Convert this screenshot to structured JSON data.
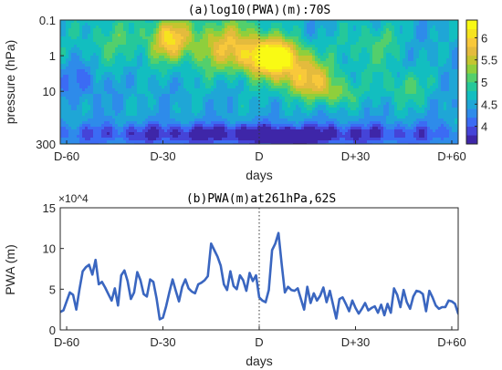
{
  "chart_data": [
    {
      "type": "heatmap",
      "title": "(a)log10(PWA)(m):70S",
      "xlabel": "days",
      "ylabel": "pressure (hPa)",
      "x_ticks": [
        "D-60",
        "D-30",
        "D",
        "D+30",
        "D+60"
      ],
      "x_tick_values": [
        -60,
        -30,
        0,
        30,
        60
      ],
      "xlim": [
        -62,
        62
      ],
      "y_ticks": [
        "0.1",
        "1",
        "10",
        "300"
      ],
      "y_tick_values": [
        0.1,
        1,
        10,
        300
      ],
      "ylim": [
        0.1,
        300
      ],
      "y_scale": "log",
      "colorbar_ticks": [
        "4",
        "4.5",
        "5",
        "5.5",
        "6"
      ],
      "colorbar_tick_values": [
        4,
        4.5,
        5,
        5.5,
        6
      ],
      "clim": [
        3.6,
        6.4
      ],
      "levels": [
        3.6,
        3.8,
        4.0,
        4.2,
        4.4,
        4.6,
        4.8,
        5.0,
        5.2,
        5.4,
        5.6,
        5.8,
        6.0,
        6.2
      ],
      "colormap": [
        "#3e26a8",
        "#4544d8",
        "#3b6bf4",
        "#2e8bea",
        "#1fa6d6",
        "#12bec0",
        "#25c89a",
        "#53cf6c",
        "#8fcf3c",
        "#c4c52f",
        "#e4bb3d",
        "#f8c83b",
        "#f6e31f",
        "#f9fa14"
      ],
      "event_marker": 0,
      "event_marker_style": "dotted"
    },
    {
      "type": "line",
      "title": "(b)PWA(m)at261hPa,62S",
      "xlabel": "days",
      "ylabel": "PWA (m)",
      "y_multiplier": "×10^4",
      "x_ticks": [
        "D-60",
        "D-30",
        "D",
        "D+30",
        "D+60"
      ],
      "x_tick_values": [
        -60,
        -30,
        0,
        30,
        60
      ],
      "xlim": [
        -62,
        62
      ],
      "y_ticks": [
        "0",
        "5",
        "10",
        "15"
      ],
      "y_tick_values": [
        0,
        5,
        10,
        15
      ],
      "ylim": [
        0,
        15
      ],
      "line_color": "#3a66c0",
      "event_marker": 0,
      "x": [
        -62,
        -61,
        -60,
        -59,
        -58,
        -57,
        -56,
        -55,
        -54,
        -53,
        -52,
        -51,
        -50,
        -49,
        -48,
        -47,
        -46,
        -45,
        -44,
        -43,
        -42,
        -41,
        -40,
        -39,
        -38,
        -37,
        -36,
        -35,
        -34,
        -33,
        -32,
        -31,
        -30,
        -29,
        -28,
        -27,
        -26,
        -25,
        -24,
        -23,
        -22,
        -21,
        -20,
        -19,
        -18,
        -17,
        -16,
        -15,
        -14,
        -13,
        -12,
        -11,
        -10,
        -9,
        -8,
        -7,
        -6,
        -5,
        -4,
        -3,
        -2,
        -1,
        0,
        1,
        2,
        3,
        4,
        5,
        6,
        7,
        8,
        9,
        10,
        11,
        12,
        13,
        14,
        15,
        16,
        17,
        18,
        19,
        20,
        21,
        22,
        23,
        24,
        25,
        26,
        27,
        28,
        29,
        30,
        31,
        32,
        33,
        34,
        35,
        36,
        37,
        38,
        39,
        40,
        41,
        42,
        43,
        44,
        45,
        46,
        47,
        48,
        49,
        50,
        51,
        52,
        53,
        54,
        55,
        56,
        57,
        58,
        59,
        60,
        61,
        62
      ],
      "values": [
        2.2,
        2.4,
        3.5,
        4.6,
        4.3,
        2.5,
        5.0,
        7.2,
        7.7,
        8.0,
        6.8,
        8.6,
        5.6,
        5.9,
        5.2,
        4.4,
        3.6,
        5.1,
        3.0,
        6.7,
        7.3,
        6.0,
        3.8,
        4.6,
        7.1,
        6.1,
        4.4,
        4.1,
        6.2,
        5.9,
        3.9,
        1.3,
        1.5,
        2.9,
        4.6,
        6.2,
        4.8,
        3.5,
        5.3,
        6.2,
        5.1,
        4.7,
        4.5,
        5.6,
        5.8,
        6.1,
        6.6,
        10.6,
        9.8,
        9.0,
        7.9,
        5.6,
        4.9,
        7.2,
        5.4,
        5.0,
        6.7,
        6.1,
        4.8,
        7.0,
        6.0,
        6.7,
        4.0,
        3.6,
        3.4,
        4.9,
        9.8,
        10.6,
        11.9,
        8.1,
        4.6,
        5.3,
        4.9,
        4.8,
        5.1,
        3.8,
        2.5,
        5.3,
        3.3,
        4.5,
        3.6,
        4.2,
        5.2,
        3.4,
        4.8,
        3.1,
        1.4,
        3.8,
        4.0,
        3.2,
        2.3,
        3.6,
        2.7,
        2.0,
        2.6,
        3.3,
        2.4,
        2.7,
        2.9,
        2.1,
        3.1,
        1.8,
        3.2,
        2.1,
        5.1,
        4.3,
        2.8,
        4.9,
        3.4,
        2.6,
        4.1,
        4.8,
        4.7,
        4.4,
        2.3,
        4.8,
        4.0,
        3.0,
        2.6,
        2.8,
        2.8,
        3.6,
        3.5,
        3.2,
        2.0
      ]
    }
  ]
}
